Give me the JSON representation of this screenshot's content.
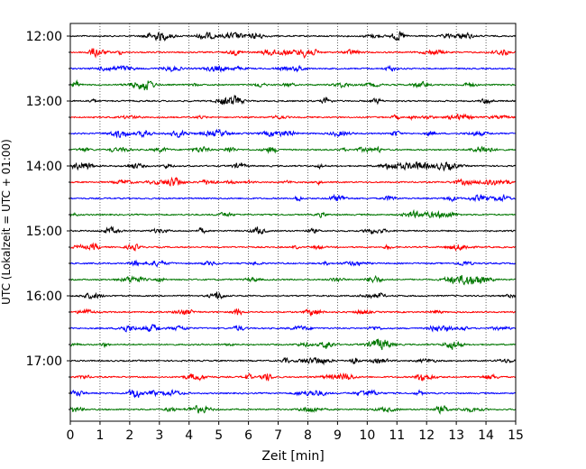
{
  "chart_data": {
    "type": "line",
    "title": "",
    "xlabel": "Zeit  [min]",
    "ylabel": "UTC (Lokalzeit = UTC + 01:00)",
    "xlim": [
      0,
      15
    ],
    "x_ticks": [
      "0",
      "1",
      "2",
      "3",
      "4",
      "5",
      "6",
      "7",
      "8",
      "9",
      "10",
      "11",
      "12",
      "13",
      "14",
      "15"
    ],
    "y_ticks": [
      {
        "label": "12:00",
        "trace": 0
      },
      {
        "label": "13:00",
        "trace": 4
      },
      {
        "label": "14:00",
        "trace": 8
      },
      {
        "label": "15:00",
        "trace": 12
      },
      {
        "label": "16:00",
        "trace": 16
      },
      {
        "label": "17:00",
        "trace": 20
      }
    ],
    "grid": "vertical dotted",
    "trace_colors": [
      "#000000",
      "#ff0000",
      "#0000ff",
      "#007700"
    ],
    "trace_count": 24,
    "trace_interval_minutes": 15,
    "series": [
      {
        "start": "12:00"
      },
      {
        "start": "12:15"
      },
      {
        "start": "12:30"
      },
      {
        "start": "12:45"
      },
      {
        "start": "13:00"
      },
      {
        "start": "13:15"
      },
      {
        "start": "13:30"
      },
      {
        "start": "13:45"
      },
      {
        "start": "14:00"
      },
      {
        "start": "14:15"
      },
      {
        "start": "14:30"
      },
      {
        "start": "14:45"
      },
      {
        "start": "15:00"
      },
      {
        "start": "15:15"
      },
      {
        "start": "15:30"
      },
      {
        "start": "15:45"
      },
      {
        "start": "16:00"
      },
      {
        "start": "16:15"
      },
      {
        "start": "16:30"
      },
      {
        "start": "16:45"
      },
      {
        "start": "17:00"
      },
      {
        "start": "17:15"
      },
      {
        "start": "17:30"
      },
      {
        "start": "17:45"
      }
    ]
  }
}
